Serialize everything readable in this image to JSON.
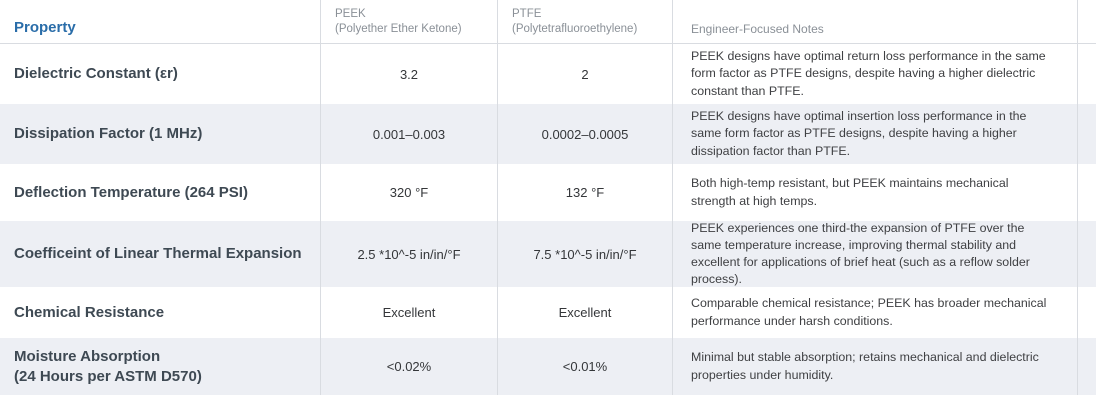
{
  "table": {
    "headers": {
      "property": "Property",
      "peek_name": "PEEK",
      "peek_sub": "(Polyether Ether Ketone)",
      "ptfe_name": "PTFE",
      "ptfe_sub": "(Polytetrafluoroethylene)",
      "notes": "Engineer-Focused Notes"
    },
    "rows": [
      {
        "property": "Dielectric Constant (εr)",
        "peek": "3.2",
        "ptfe": "2",
        "notes": "PEEK designs have optimal return loss performance in the same form factor as PTFE designs, despite having a higher dielectric constant than PTFE."
      },
      {
        "property": "Dissipation Factor (1 MHz)",
        "peek": "0.001–0.003",
        "ptfe": "0.0002–0.0005",
        "notes": "PEEK designs have optimal insertion loss performance in the same form factor as PTFE designs, despite having a higher dissipation factor than PTFE."
      },
      {
        "property": "Deflection Temperature (264 PSI)",
        "peek": "320 °F",
        "ptfe": "132 °F",
        "notes": "Both high-temp resistant, but PEEK maintains mechanical strength at high temps."
      },
      {
        "property": "Coefficeint of Linear Thermal Expansion",
        "peek": "2.5 *10^-5 in/in/°F",
        "ptfe": "7.5 *10^-5 in/in/°F",
        "notes": "PEEK experiences one third-the expansion of PTFE over the same temperature increase, improving thermal stability and excellent for applications of brief heat (such as a reflow solder process)."
      },
      {
        "property": "Chemical Resistance",
        "peek": "Excellent",
        "ptfe": "Excellent",
        "notes": "Comparable chemical resistance; PEEK has broader mechanical performance under harsh conditions."
      },
      {
        "property": "Moisture Absorption\n(24 Hours per ASTM D570)",
        "peek": "<0.02%",
        "ptfe": "<0.01%",
        "notes": "Minimal but stable absorption; retains mechanical and dielectric properties under humidity."
      }
    ],
    "colors": {
      "header_accent": "#2a6da9",
      "alt_row_bg": "#edeff4",
      "divider": "#d9dce1"
    }
  }
}
